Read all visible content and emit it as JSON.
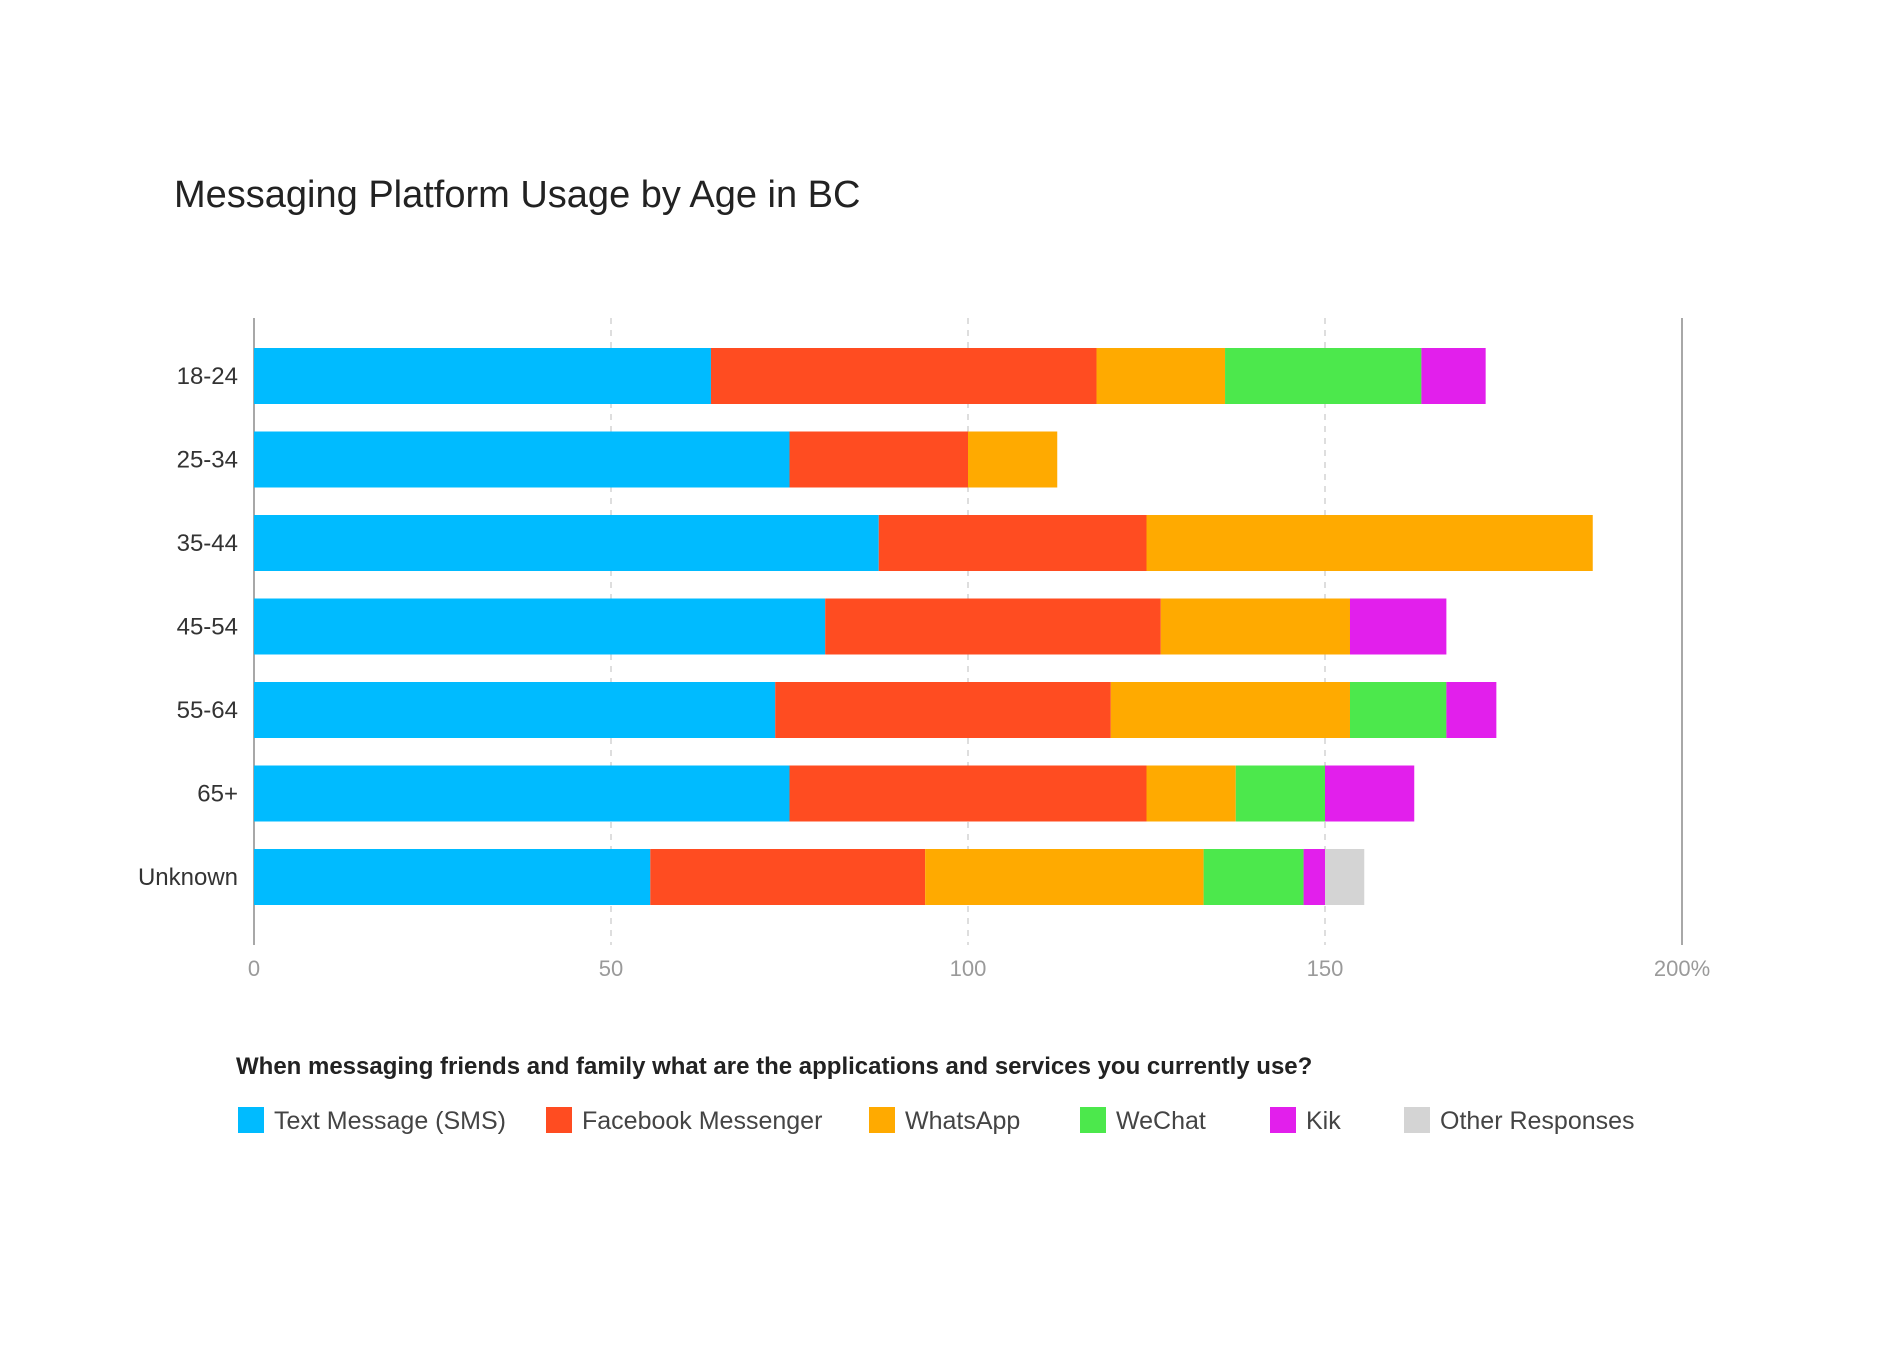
{
  "chart_data": {
    "type": "bar",
    "orientation": "horizontal",
    "stacked": true,
    "title": "Messaging Platform Usage by Age in BC",
    "legend_title": "When messaging friends and family what are the applications and services you currently use?",
    "legend_position": "bottom",
    "categories": [
      "18-24",
      "25-34",
      "35-44",
      "45-54",
      "55-64",
      "65+",
      "Unknown"
    ],
    "xlim": [
      0,
      200
    ],
    "x_ticks": [
      "0",
      "50",
      "100",
      "150",
      "200%"
    ],
    "grid": true,
    "series": [
      {
        "name": "Text Message (SMS)",
        "color": "#00bbff",
        "values": [
          64,
          75,
          87.5,
          80,
          73,
          75,
          55.5
        ]
      },
      {
        "name": "Facebook Messenger",
        "color": "#ff4c21",
        "values": [
          54,
          25,
          37.5,
          47,
          47,
          50,
          38.5
        ]
      },
      {
        "name": "WhatsApp",
        "color": "#ffaa00",
        "values": [
          18,
          12.5,
          62.5,
          26.5,
          33.5,
          12.5,
          39
        ]
      },
      {
        "name": "WeChat",
        "color": "#4ce84c",
        "values": [
          27.5,
          0,
          0,
          0,
          13.5,
          12.5,
          14
        ]
      },
      {
        "name": "Kik",
        "color": "#e21fec",
        "values": [
          9,
          0,
          0,
          13.5,
          7,
          12.5,
          3
        ]
      },
      {
        "name": "Other Responses",
        "color": "#d4d4d4",
        "values": [
          0,
          0,
          0,
          0,
          0,
          0,
          5.5
        ]
      }
    ]
  }
}
